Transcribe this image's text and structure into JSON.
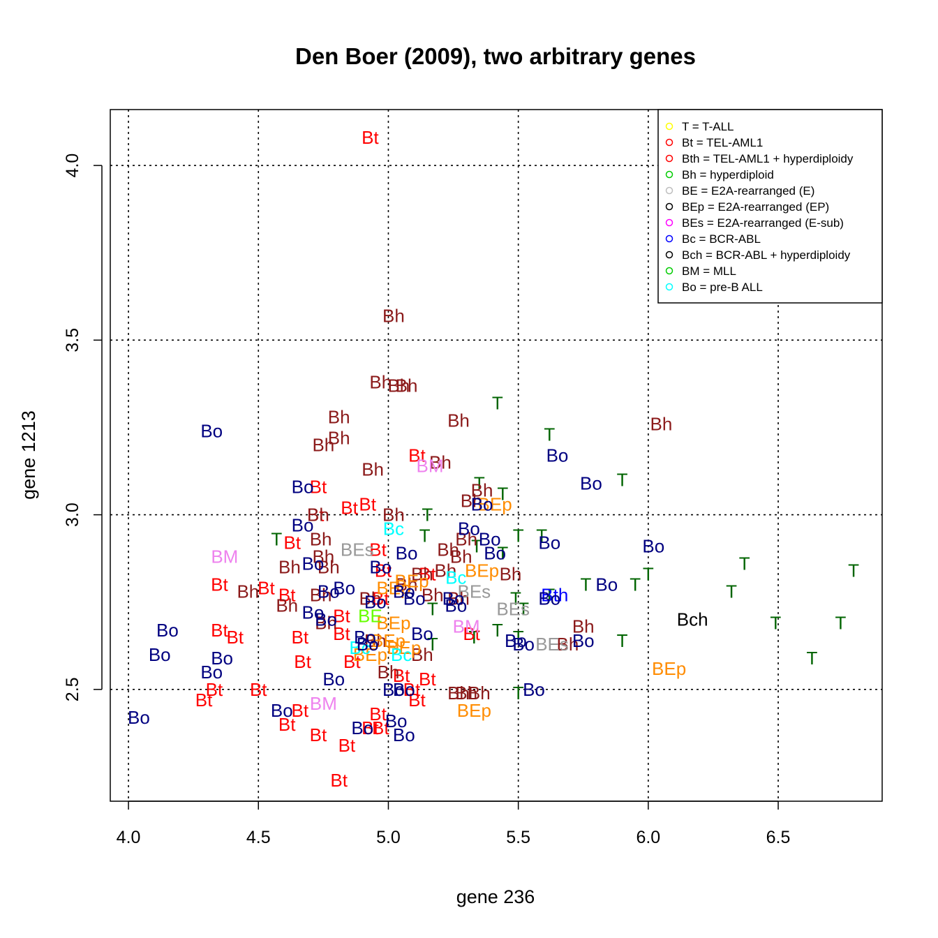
{
  "chart_data": {
    "type": "scatter",
    "title": "Den Boer (2009), two arbitrary genes",
    "xlabel": "gene 236",
    "ylabel": "gene 1213",
    "xlim": [
      3.93,
      6.9
    ],
    "ylim": [
      2.18,
      4.16
    ],
    "xticks": [
      "4.0",
      "4.5",
      "5.0",
      "5.5",
      "6.0",
      "6.5"
    ],
    "xtick_values": [
      4.0,
      4.5,
      5.0,
      5.5,
      6.0,
      6.5
    ],
    "yticks": [
      "2.5",
      "3.0",
      "3.5",
      "4.0"
    ],
    "ytick_values": [
      2.5,
      3.0,
      3.5,
      4.0
    ],
    "grid": true,
    "legend_position": "top-right",
    "legend": [
      {
        "label": "T = T-ALL",
        "color": "#ffff00"
      },
      {
        "label": "Bt = TEL-AML1",
        "color": "#ff0000"
      },
      {
        "label": "Bth = TEL-AML1 + hyperdiploidy",
        "color": "#ff0000"
      },
      {
        "label": "Bh = hyperdiploid",
        "color": "#00cc00"
      },
      {
        "label": "BE = E2A-rearranged (E)",
        "color": "#bebebe"
      },
      {
        "label": "BEp = E2A-rearranged (EP)",
        "color": "#000000"
      },
      {
        "label": "BEs = E2A-rearranged (E-sub)",
        "color": "#ff00ff"
      },
      {
        "label": "Bc = BCR-ABL",
        "color": "#0000ff"
      },
      {
        "label": "Bch = BCR-ABL + hyperdiploidy",
        "color": "#000000"
      },
      {
        "label": "BM = MLL",
        "color": "#00cc00"
      },
      {
        "label": "Bo = pre-B ALL",
        "color": "#00ffff"
      }
    ],
    "series": [
      {
        "name": "T",
        "color": "#006400",
        "points": [
          [
            5.42,
            3.32
          ],
          [
            5.62,
            3.23
          ],
          [
            5.35,
            3.09
          ],
          [
            5.44,
            3.06
          ],
          [
            5.9,
            3.1
          ],
          [
            5.15,
            3.0
          ],
          [
            5.14,
            2.94
          ],
          [
            5.5,
            2.94
          ],
          [
            5.59,
            2.94
          ],
          [
            4.57,
            2.93
          ],
          [
            5.34,
            2.91
          ],
          [
            5.44,
            2.89
          ],
          [
            6.37,
            2.86
          ],
          [
            6.79,
            2.84
          ],
          [
            6.0,
            2.83
          ],
          [
            5.95,
            2.8
          ],
          [
            5.76,
            2.8
          ],
          [
            6.32,
            2.78
          ],
          [
            5.62,
            2.77
          ],
          [
            5.49,
            2.76
          ],
          [
            5.52,
            2.73
          ],
          [
            5.17,
            2.73
          ],
          [
            6.49,
            2.69
          ],
          [
            6.74,
            2.69
          ],
          [
            5.33,
            2.65
          ],
          [
            5.42,
            2.67
          ],
          [
            5.17,
            2.63
          ],
          [
            5.9,
            2.64
          ],
          [
            5.5,
            2.65
          ],
          [
            6.63,
            2.59
          ],
          [
            5.5,
            2.49
          ]
        ]
      },
      {
        "name": "Bt",
        "color": "#ff0000",
        "points": [
          [
            4.93,
            4.08
          ],
          [
            5.11,
            3.17
          ],
          [
            4.73,
            3.08
          ],
          [
            4.72,
            3.0
          ],
          [
            4.85,
            3.02
          ],
          [
            4.92,
            3.03
          ],
          [
            4.96,
            2.9
          ],
          [
            4.63,
            2.92
          ],
          [
            4.98,
            2.84
          ],
          [
            5.15,
            2.83
          ],
          [
            4.35,
            2.8
          ],
          [
            4.53,
            2.79
          ],
          [
            4.61,
            2.77
          ],
          [
            4.97,
            2.76
          ],
          [
            4.35,
            2.67
          ],
          [
            4.41,
            2.65
          ],
          [
            4.82,
            2.71
          ],
          [
            4.66,
            2.65
          ],
          [
            4.82,
            2.66
          ],
          [
            4.67,
            2.58
          ],
          [
            4.86,
            2.58
          ],
          [
            5.32,
            2.66
          ],
          [
            4.33,
            2.5
          ],
          [
            4.5,
            2.5
          ],
          [
            4.29,
            2.47
          ],
          [
            5.15,
            2.53
          ],
          [
            5.05,
            2.54
          ],
          [
            5.09,
            2.5
          ],
          [
            5.11,
            2.47
          ],
          [
            4.66,
            2.44
          ],
          [
            4.96,
            2.43
          ],
          [
            4.61,
            2.4
          ],
          [
            4.73,
            2.37
          ],
          [
            4.84,
            2.34
          ],
          [
            4.93,
            2.39
          ],
          [
            4.97,
            2.39
          ],
          [
            4.81,
            2.24
          ]
        ]
      },
      {
        "name": "Bth",
        "color": "#0000ff",
        "points": [
          [
            5.64,
            2.77
          ]
        ]
      },
      {
        "name": "Bh",
        "color": "#8b1a1a",
        "points": [
          [
            5.02,
            3.57
          ],
          [
            4.97,
            3.38
          ],
          [
            5.04,
            3.37
          ],
          [
            5.07,
            3.37
          ],
          [
            4.81,
            3.28
          ],
          [
            6.05,
            3.26
          ],
          [
            5.27,
            3.27
          ],
          [
            4.81,
            3.22
          ],
          [
            4.75,
            3.2
          ],
          [
            4.94,
            3.13
          ],
          [
            5.2,
            3.15
          ],
          [
            5.36,
            3.07
          ],
          [
            5.32,
            3.04
          ],
          [
            4.73,
            3.0
          ],
          [
            5.02,
            3.0
          ],
          [
            4.74,
            2.93
          ],
          [
            4.75,
            2.88
          ],
          [
            4.77,
            2.85
          ],
          [
            4.62,
            2.85
          ],
          [
            5.23,
            2.9
          ],
          [
            5.28,
            2.88
          ],
          [
            5.3,
            2.93
          ],
          [
            5.22,
            2.84
          ],
          [
            5.47,
            2.83
          ],
          [
            4.46,
            2.78
          ],
          [
            4.74,
            2.77
          ],
          [
            4.93,
            2.76
          ],
          [
            4.61,
            2.74
          ],
          [
            5.07,
            2.8
          ],
          [
            5.13,
            2.83
          ],
          [
            5.17,
            2.77
          ],
          [
            5.27,
            2.76
          ],
          [
            4.76,
            2.69
          ],
          [
            5.75,
            2.68
          ],
          [
            5.69,
            2.63
          ],
          [
            4.95,
            2.64
          ],
          [
            5.13,
            2.6
          ],
          [
            5.0,
            2.55
          ],
          [
            5.27,
            2.49
          ],
          [
            5.35,
            2.49
          ],
          [
            5.3,
            2.49
          ]
        ]
      },
      {
        "name": "BEs",
        "color": "#999999",
        "points": [
          [
            4.88,
            2.9
          ],
          [
            5.33,
            2.78
          ],
          [
            5.48,
            2.73
          ],
          [
            5.63,
            2.63
          ]
        ]
      },
      {
        "name": "BEp",
        "color": "#ff8c00",
        "points": [
          [
            5.41,
            3.03
          ],
          [
            5.36,
            2.84
          ],
          [
            5.09,
            2.81
          ],
          [
            5.02,
            2.79
          ],
          [
            5.02,
            2.69
          ],
          [
            5.0,
            2.64
          ],
          [
            5.06,
            2.62
          ],
          [
            4.93,
            2.6
          ],
          [
            6.08,
            2.56
          ],
          [
            5.33,
            2.44
          ]
        ]
      },
      {
        "name": "Bc",
        "color": "#00ffff",
        "points": [
          [
            5.02,
            2.96
          ],
          [
            5.26,
            2.82
          ],
          [
            4.89,
            2.62
          ],
          [
            5.05,
            2.6
          ]
        ]
      },
      {
        "name": "BE",
        "color": "#66ff00",
        "points": [
          [
            4.93,
            2.71
          ]
        ]
      },
      {
        "name": "Bch",
        "color": "#000000",
        "points": [
          [
            6.17,
            2.7
          ]
        ]
      },
      {
        "name": "BM",
        "color": "#ee82ee",
        "points": [
          [
            5.16,
            3.14
          ],
          [
            4.37,
            2.88
          ],
          [
            5.3,
            2.68
          ],
          [
            4.75,
            2.46
          ]
        ]
      },
      {
        "name": "Bo",
        "color": "#000080",
        "points": [
          [
            4.32,
            3.24
          ],
          [
            5.65,
            3.17
          ],
          [
            5.78,
            3.09
          ],
          [
            4.67,
            3.08
          ],
          [
            5.36,
            3.03
          ],
          [
            4.67,
            2.97
          ],
          [
            5.31,
            2.96
          ],
          [
            5.39,
            2.93
          ],
          [
            5.62,
            2.92
          ],
          [
            6.02,
            2.91
          ],
          [
            5.41,
            2.89
          ],
          [
            5.07,
            2.89
          ],
          [
            4.71,
            2.86
          ],
          [
            4.97,
            2.85
          ],
          [
            5.84,
            2.8
          ],
          [
            4.83,
            2.79
          ],
          [
            4.77,
            2.78
          ],
          [
            5.06,
            2.78
          ],
          [
            5.1,
            2.76
          ],
          [
            5.25,
            2.76
          ],
          [
            5.26,
            2.74
          ],
          [
            5.62,
            2.76
          ],
          [
            4.71,
            2.72
          ],
          [
            4.95,
            2.75
          ],
          [
            4.76,
            2.7
          ],
          [
            4.15,
            2.67
          ],
          [
            5.13,
            2.66
          ],
          [
            4.91,
            2.65
          ],
          [
            5.49,
            2.64
          ],
          [
            5.75,
            2.64
          ],
          [
            4.92,
            2.63
          ],
          [
            5.52,
            2.63
          ],
          [
            4.12,
            2.6
          ],
          [
            4.36,
            2.59
          ],
          [
            4.32,
            2.55
          ],
          [
            4.79,
            2.53
          ],
          [
            5.02,
            2.5
          ],
          [
            5.06,
            2.5
          ],
          [
            5.56,
            2.5
          ],
          [
            4.59,
            2.44
          ],
          [
            5.03,
            2.41
          ],
          [
            4.9,
            2.39
          ],
          [
            5.06,
            2.37
          ],
          [
            4.04,
            2.42
          ]
        ]
      }
    ]
  }
}
